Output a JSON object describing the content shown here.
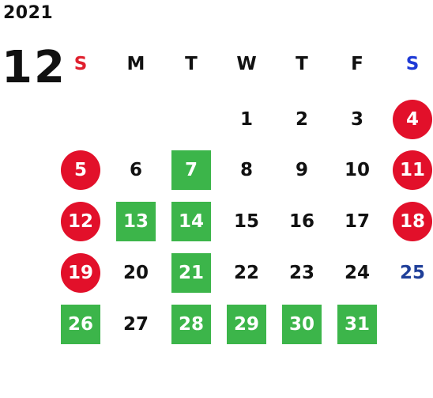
{
  "calendar": {
    "year": "2021",
    "month": "12",
    "weekdays": [
      {
        "label": "S",
        "color": "#e0202e"
      },
      {
        "label": "M",
        "color": "#111111"
      },
      {
        "label": "T",
        "color": "#111111"
      },
      {
        "label": "W",
        "color": "#111111"
      },
      {
        "label": "T",
        "color": "#111111"
      },
      {
        "label": "F",
        "color": "#111111"
      },
      {
        "label": "S",
        "color": "#1e3ad6"
      }
    ],
    "first_weekday_index": 3,
    "days_in_month": 31,
    "colors": {
      "holiday_circle": "#e2102a",
      "highlight_square": "#3cb54a",
      "blue_text": "#1f3f99",
      "normal_text": "#111111"
    },
    "days": [
      {
        "day": "1",
        "style": "plain"
      },
      {
        "day": "2",
        "style": "plain"
      },
      {
        "day": "3",
        "style": "plain"
      },
      {
        "day": "4",
        "style": "circle"
      },
      {
        "day": "5",
        "style": "circle"
      },
      {
        "day": "6",
        "style": "plain"
      },
      {
        "day": "7",
        "style": "square"
      },
      {
        "day": "8",
        "style": "plain"
      },
      {
        "day": "9",
        "style": "plain"
      },
      {
        "day": "10",
        "style": "plain"
      },
      {
        "day": "11",
        "style": "circle"
      },
      {
        "day": "12",
        "style": "circle"
      },
      {
        "day": "13",
        "style": "square"
      },
      {
        "day": "14",
        "style": "square"
      },
      {
        "day": "15",
        "style": "plain"
      },
      {
        "day": "16",
        "style": "plain"
      },
      {
        "day": "17",
        "style": "plain"
      },
      {
        "day": "18",
        "style": "circle"
      },
      {
        "day": "19",
        "style": "circle"
      },
      {
        "day": "20",
        "style": "plain"
      },
      {
        "day": "21",
        "style": "square"
      },
      {
        "day": "22",
        "style": "plain"
      },
      {
        "day": "23",
        "style": "plain"
      },
      {
        "day": "24",
        "style": "plain"
      },
      {
        "day": "25",
        "style": "blue"
      },
      {
        "day": "26",
        "style": "square"
      },
      {
        "day": "27",
        "style": "plain"
      },
      {
        "day": "28",
        "style": "square"
      },
      {
        "day": "29",
        "style": "square"
      },
      {
        "day": "30",
        "style": "square"
      },
      {
        "day": "31",
        "style": "square"
      }
    ]
  }
}
